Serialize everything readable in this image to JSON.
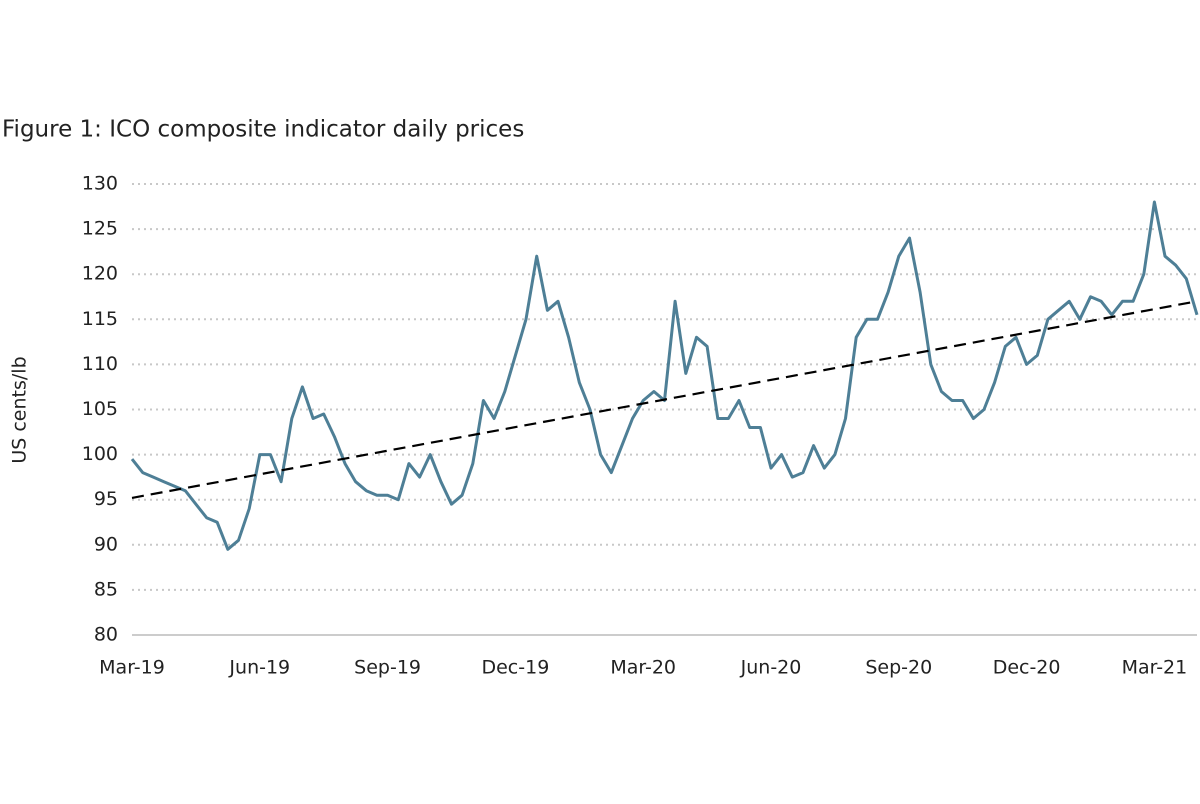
{
  "chart_data": {
    "type": "line",
    "title": "Figure 1: ICO composite indicator daily prices",
    "ylabel": "US cents/lb",
    "categories": [
      "Mar-19",
      null,
      null,
      null,
      null,
      null,
      null,
      null,
      null,
      null,
      null,
      null,
      "Jun-19",
      null,
      null,
      null,
      null,
      null,
      null,
      null,
      null,
      null,
      null,
      null,
      "Sep-19",
      null,
      null,
      null,
      null,
      null,
      null,
      null,
      null,
      null,
      null,
      null,
      "Dec-19",
      null,
      null,
      null,
      null,
      null,
      null,
      null,
      null,
      null,
      null,
      null,
      "Mar-20",
      null,
      null,
      null,
      null,
      null,
      null,
      null,
      null,
      null,
      null,
      null,
      "Jun-20",
      null,
      null,
      null,
      null,
      null,
      null,
      null,
      null,
      null,
      null,
      null,
      "Sep-20",
      null,
      null,
      null,
      null,
      null,
      null,
      null,
      null,
      null,
      null,
      null,
      "Dec-20",
      null,
      null,
      null,
      null,
      null,
      null,
      null,
      null,
      null,
      null,
      null,
      "Mar-21",
      null,
      null,
      null,
      null
    ],
    "series": [
      {
        "color": "#4e7f96",
        "values": [
          99.5,
          98,
          97.5,
          97,
          96.5,
          96,
          94.5,
          93,
          92.5,
          89.5,
          90.5,
          94,
          100,
          100,
          97,
          104,
          107.5,
          104,
          104.5,
          102,
          99,
          97,
          96,
          95.5,
          95.5,
          95,
          99,
          97.5,
          100,
          97,
          94.5,
          95.5,
          99,
          106,
          104,
          107,
          111,
          115,
          122,
          116,
          117,
          113,
          108,
          105,
          100,
          98,
          101,
          104,
          106,
          107,
          106,
          117,
          109,
          113,
          112,
          104,
          104,
          106,
          103,
          103,
          98.5,
          100,
          97.5,
          98,
          101,
          98.5,
          100,
          104,
          113,
          115,
          115,
          118,
          122,
          124,
          118,
          110,
          107,
          106,
          106,
          104,
          105,
          108,
          112,
          113,
          110,
          111,
          115,
          116,
          117,
          115,
          117.5,
          117,
          115.5,
          117,
          117,
          120,
          128,
          122,
          121,
          119.5,
          115.5
        ]
      }
    ],
    "trend": {
      "color": "#000000",
      "values": [
        95.2,
        117
      ]
    },
    "ylim": [
      80,
      130
    ],
    "yticks": [
      80,
      85,
      90,
      95,
      100,
      105,
      110,
      115,
      120,
      125,
      130
    ],
    "grid": true
  }
}
